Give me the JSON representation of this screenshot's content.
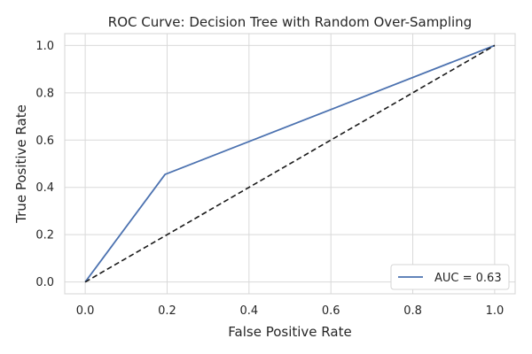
{
  "chart_data": {
    "type": "line",
    "title": "ROC Curve: Decision Tree with Random Over-Sampling",
    "xlabel": "False Positive Rate",
    "ylabel": "True Positive Rate",
    "xlim": [
      -0.05,
      1.05
    ],
    "ylim": [
      -0.05,
      1.05
    ],
    "xticks": [
      0.0,
      0.2,
      0.4,
      0.6,
      0.8,
      1.0
    ],
    "yticks": [
      0.0,
      0.2,
      0.4,
      0.6,
      0.8,
      1.0
    ],
    "xtick_labels": [
      "0.0",
      "0.2",
      "0.4",
      "0.6",
      "0.8",
      "1.0"
    ],
    "ytick_labels": [
      "0.0",
      "0.2",
      "0.4",
      "0.6",
      "0.8",
      "1.0"
    ],
    "grid": true,
    "legend_position": "lower-right",
    "series": [
      {
        "name": "AUC = 0.63",
        "x": [
          0.0,
          0.195,
          1.0
        ],
        "y": [
          0.0,
          0.455,
          1.0
        ],
        "color": "#4c72b0",
        "style": "solid"
      },
      {
        "x": [
          0.0,
          1.0
        ],
        "y": [
          0.0,
          1.0
        ],
        "color": "#1a1a1a",
        "style": "dashed"
      }
    ]
  }
}
